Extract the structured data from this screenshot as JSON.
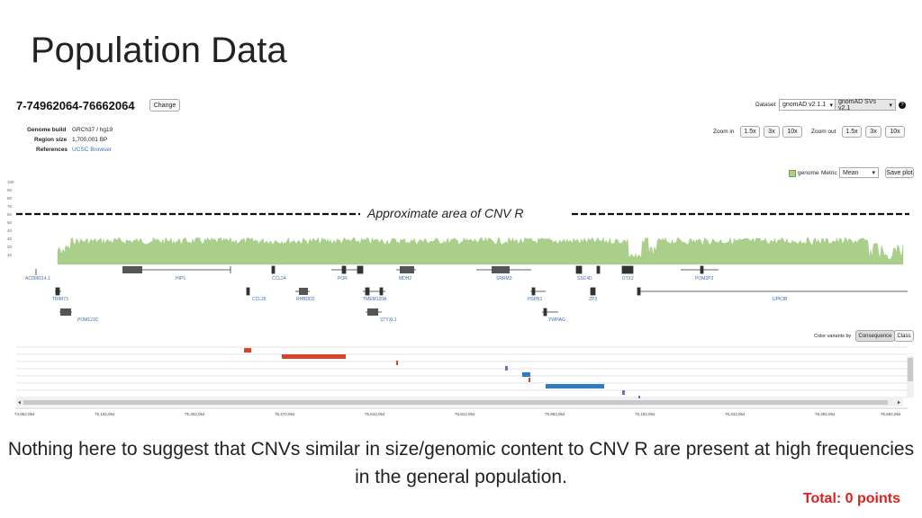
{
  "slide": {
    "title": "Population Data",
    "caption": "Nothing here to suggest that CNVs similar in size/genomic content to CNV R are present at high frequencies in the general population.",
    "total": "Total: 0 points"
  },
  "browser": {
    "region": "7-74962064-76662064",
    "change_label": "Change",
    "dataset_label": "Dataset",
    "dataset_value": "gnomAD v2.1.1",
    "sv_dataset_value": "gnomAD SVs v2.1",
    "help_icon": "question-circle-icon",
    "info": {
      "genome_build_label": "Genome build",
      "genome_build_value": "GRCh37 / hg19",
      "region_size_label": "Region size",
      "region_size_value": "1,700,001 BP",
      "references_label": "References",
      "references_value": "UCSC Browser"
    },
    "zoom_in_label": "Zoom in",
    "zoom_out_label": "Zoom out",
    "zoom_in_options": [
      "1.5x",
      "3x",
      "10x"
    ],
    "zoom_out_options": [
      "1.5x",
      "3x",
      "10x"
    ],
    "coverage_legend": "genome",
    "metric_label": "Metric",
    "metric_value": "Mean",
    "save_plot_label": "Save plot",
    "y_ticks": [
      "100",
      "90",
      "80",
      "70",
      "60",
      "50",
      "40",
      "30",
      "20",
      "10"
    ],
    "cnv_annotation": "Approximate area of CNV R",
    "genes_row1": [
      "AC006014.1",
      "HIP1",
      "CCL24",
      "POR",
      "MDH2",
      "SRRM3",
      "SSC4D",
      "DTX2",
      "POM2P3"
    ],
    "genes_row2": [
      "TRIM73",
      "CCL26",
      "RHBDD2",
      "TMEM120A",
      "HSPB1",
      "ZP3",
      "UPK3B"
    ],
    "genes_row3": [
      "POM121C",
      "STYXL1",
      "YWHAG"
    ],
    "color_variants_label": "Color variants by",
    "consequence_label": "Consequence",
    "class_label": "Class",
    "x_ticks": [
      "74,962,064",
      "75,132,064",
      "75,302,064",
      "75,472,064",
      "75,642,064",
      "75,812,064",
      "75,982,064",
      "76,152,064",
      "76,322,064",
      "76,492,064",
      "76,662,064"
    ],
    "colors": {
      "coverage": "#a9cf8a",
      "deletion": "#d9432b",
      "duplication": "#2f7cc1",
      "other": "#7b68c8",
      "accent": "#3a6fb0"
    }
  }
}
